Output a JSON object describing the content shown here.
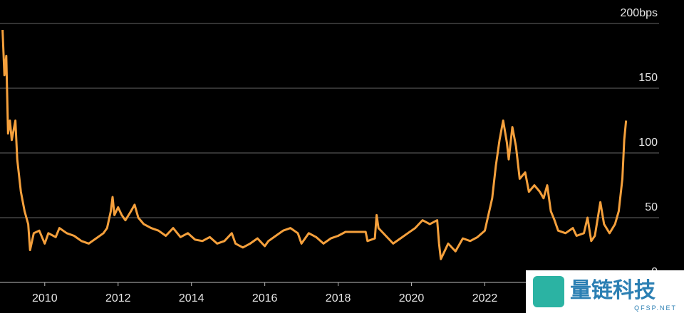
{
  "chart_data": {
    "type": "line",
    "x": [
      2008.85,
      2008.9,
      2008.95,
      2009.0,
      2009.05,
      2009.1,
      2009.2,
      2009.25,
      2009.35,
      2009.45,
      2009.55,
      2009.6,
      2009.7,
      2009.85,
      2010.0,
      2010.1,
      2010.3,
      2010.4,
      2010.6,
      2010.8,
      2011.0,
      2011.2,
      2011.4,
      2011.6,
      2011.7,
      2011.8,
      2011.85,
      2011.9,
      2012.0,
      2012.1,
      2012.2,
      2012.35,
      2012.45,
      2012.55,
      2012.7,
      2012.9,
      2013.1,
      2013.3,
      2013.5,
      2013.7,
      2013.9,
      2014.1,
      2014.3,
      2014.5,
      2014.7,
      2014.9,
      2015.1,
      2015.2,
      2015.4,
      2015.6,
      2015.8,
      2016.0,
      2016.1,
      2016.3,
      2016.5,
      2016.7,
      2016.9,
      2017.0,
      2017.2,
      2017.4,
      2017.6,
      2017.8,
      2018.0,
      2018.2,
      2018.4,
      2018.6,
      2018.75,
      2018.8,
      2019.0,
      2019.05,
      2019.1,
      2019.3,
      2019.5,
      2019.7,
      2019.9,
      2020.1,
      2020.3,
      2020.5,
      2020.7,
      2020.75,
      2020.8,
      2020.9,
      2021.0,
      2021.2,
      2021.4,
      2021.6,
      2021.8,
      2022.0,
      2022.2,
      2022.3,
      2022.4,
      2022.5,
      2022.6,
      2022.65,
      2022.75,
      2022.85,
      2022.95,
      2023.1,
      2023.2,
      2023.35,
      2023.5,
      2023.6,
      2023.7,
      2023.8,
      2023.9,
      2024.0,
      2024.2,
      2024.4,
      2024.5,
      2024.7,
      2024.8,
      2024.9,
      2025.0,
      2025.15,
      2025.25,
      2025.4,
      2025.55,
      2025.65,
      2025.75,
      2025.8,
      2025.85
    ],
    "series": [
      {
        "color": "#f5a03c",
        "values": [
          195,
          160,
          175,
          115,
          125,
          110,
          125,
          95,
          70,
          55,
          45,
          25,
          38,
          40,
          30,
          38,
          35,
          42,
          38,
          36,
          32,
          30,
          34,
          38,
          42,
          55,
          66,
          52,
          58,
          52,
          48,
          55,
          60,
          50,
          45,
          42,
          40,
          36,
          42,
          35,
          38,
          33,
          32,
          35,
          30,
          32,
          38,
          30,
          27,
          30,
          34,
          28,
          32,
          36,
          40,
          42,
          38,
          30,
          38,
          35,
          30,
          34,
          36,
          39,
          39,
          39,
          39,
          32,
          34,
          52,
          42,
          36,
          30,
          34,
          38,
          42,
          48,
          45,
          48,
          30,
          18,
          24,
          30,
          24,
          34,
          32,
          35,
          40,
          65,
          90,
          110,
          125,
          108,
          95,
          120,
          105,
          80,
          85,
          70,
          75,
          70,
          65,
          75,
          55,
          48,
          40,
          38,
          42,
          36,
          38,
          50,
          32,
          36,
          62,
          45,
          38,
          45,
          55,
          80,
          110,
          125
        ]
      }
    ],
    "xlim": [
      2008.78,
      2026.75
    ],
    "xticks": [
      2010,
      2012,
      2014,
      2016,
      2018,
      2020,
      2022
    ],
    "ylim": [
      0,
      200
    ],
    "yticks": [
      0,
      50,
      100,
      150,
      {
        "value": 200,
        "label": "200bps"
      }
    ],
    "grid": true
  },
  "watermark": {
    "title": "量链科技",
    "subtitle": "QFSP.NET"
  }
}
